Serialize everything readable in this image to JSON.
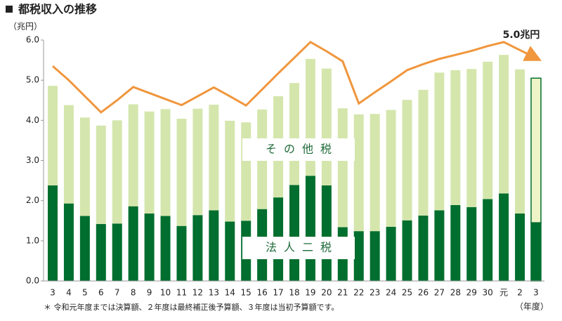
{
  "chart_data": {
    "type": "bar",
    "stacked": true,
    "title": "都税収入の推移",
    "y_axis_label": "（兆円）",
    "x_axis_label": "（年度）",
    "footnote": "＊ 令和元年度までは決算額、２年度は最終補正後予算額、３年度は当初予算額です。",
    "categories": [
      "3",
      "4",
      "5",
      "6",
      "7",
      "8",
      "9",
      "10",
      "11",
      "12",
      "13",
      "14",
      "15",
      "16",
      "17",
      "18",
      "19",
      "20",
      "21",
      "22",
      "23",
      "24",
      "25",
      "26",
      "27",
      "28",
      "29",
      "30",
      "元",
      "2",
      "3"
    ],
    "series": [
      {
        "name": "法人二税",
        "color": "#006e2e",
        "type": "bar",
        "values": [
          2.38,
          1.93,
          1.62,
          1.42,
          1.43,
          1.86,
          1.68,
          1.62,
          1.37,
          1.64,
          1.76,
          1.48,
          1.5,
          1.79,
          2.08,
          2.39,
          2.62,
          2.38,
          1.34,
          1.24,
          1.24,
          1.35,
          1.51,
          1.63,
          1.76,
          1.89,
          1.84,
          2.04,
          2.18,
          1.68,
          1.45
        ]
      },
      {
        "name": "その他税",
        "color": "#d5e6ad",
        "type": "bar",
        "values": [
          2.48,
          2.45,
          2.45,
          2.45,
          2.57,
          2.54,
          2.54,
          2.66,
          2.67,
          2.65,
          2.63,
          2.51,
          2.45,
          2.48,
          2.52,
          2.54,
          2.91,
          2.91,
          2.96,
          2.91,
          2.92,
          2.91,
          3.0,
          3.13,
          3.43,
          3.36,
          3.44,
          3.42,
          3.45,
          3.59,
          3.6
        ]
      },
      {
        "type": "line",
        "color": "#f0963c",
        "values": [
          5.35,
          5.0,
          4.6,
          4.2,
          4.5,
          4.83,
          4.68,
          4.53,
          4.38,
          4.6,
          4.82,
          4.6,
          4.37,
          4.77,
          5.17,
          5.56,
          5.95,
          5.72,
          5.47,
          4.42,
          4.7,
          4.97,
          5.25,
          5.4,
          5.53,
          5.63,
          5.73,
          5.85,
          5.95,
          5.75,
          5.55
        ]
      }
    ],
    "annotations": [
      "5.0兆円"
    ],
    "ylim": [
      0,
      6
    ],
    "yticks": [
      {
        "value": 0,
        "label": "0.0"
      },
      {
        "value": 1,
        "label": "1.0"
      },
      {
        "value": 2,
        "label": "2.0"
      },
      {
        "value": 3,
        "label": "3.0"
      },
      {
        "value": 4,
        "label": "4.0"
      },
      {
        "value": 5,
        "label": "5.0"
      },
      {
        "value": 6,
        "label": "6.0"
      }
    ]
  }
}
